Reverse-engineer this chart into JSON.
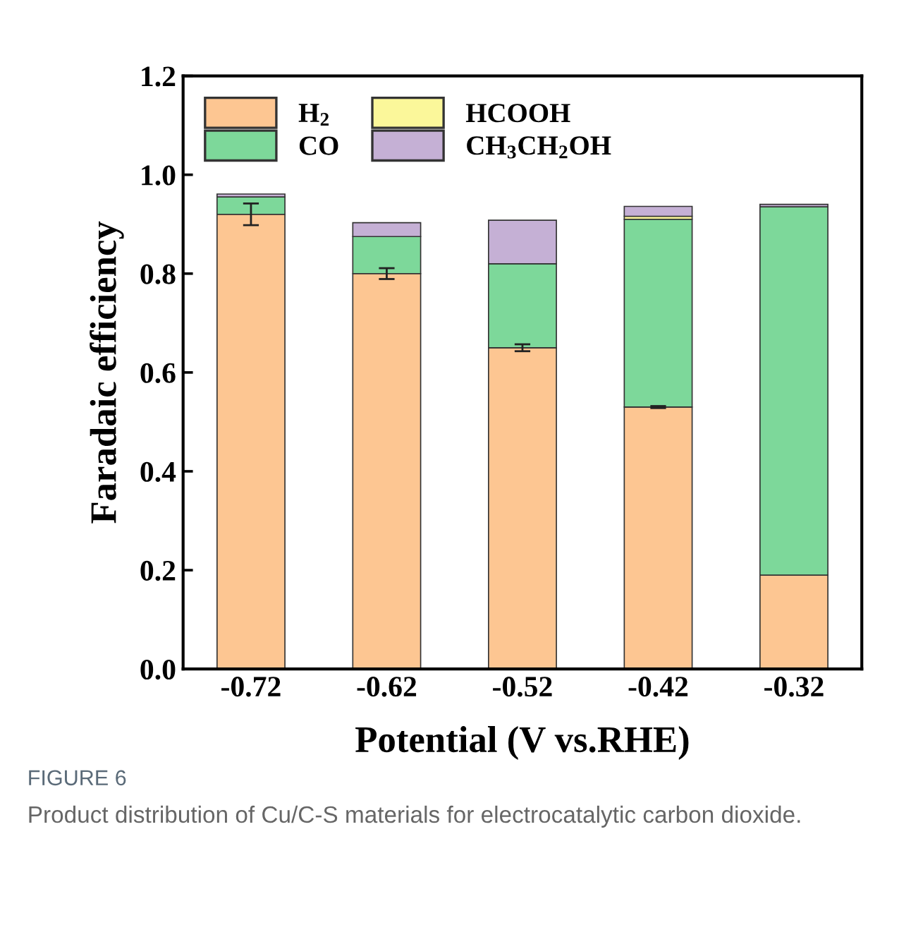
{
  "chart_data": {
    "type": "bar",
    "stacked": true,
    "xlabel": "Potential (V vs.RHE)",
    "ylabel": "Faradaic efficiency",
    "categories": [
      "-0.72",
      "-0.62",
      "-0.52",
      "-0.42",
      "-0.32"
    ],
    "series": [
      {
        "name": "H$_{2}$",
        "color": "#fdc692",
        "values": [
          0.92,
          0.8,
          0.65,
          0.53,
          0.19
        ],
        "errors": [
          0.022,
          0.011,
          0.007,
          0.002,
          null
        ]
      },
      {
        "name": "CO",
        "color": "#7dd89a",
        "values": [
          0.035,
          0.075,
          0.17,
          0.38,
          0.745
        ]
      },
      {
        "name": "HCOOH",
        "color": "#fbf79a",
        "values": [
          0,
          0,
          0,
          0.006,
          0
        ]
      },
      {
        "name": "CH$_{3}$CH$_{2}$OH",
        "color": "#c5b0d5",
        "values": [
          0.006,
          0.028,
          0.088,
          0.02,
          0.005
        ]
      }
    ],
    "ylim": [
      0,
      1.2
    ],
    "yticks": [
      {
        "value": 0,
        "label": "0.0"
      },
      {
        "value": 0.2,
        "label": "0.2"
      },
      {
        "value": 0.4,
        "label": "0.4"
      },
      {
        "value": 0.6,
        "label": "0.6"
      },
      {
        "value": 0.8,
        "label": "0.8"
      },
      {
        "value": 1.0,
        "label": "1.0"
      },
      {
        "value": 1.2,
        "label": "1.2"
      }
    ],
    "grid": false,
    "legend": "top left",
    "annotations": [
      "FIGURE 6",
      "Product distribution of Cu/C-S materials for electrocatalytic carbon dioxide."
    ]
  }
}
